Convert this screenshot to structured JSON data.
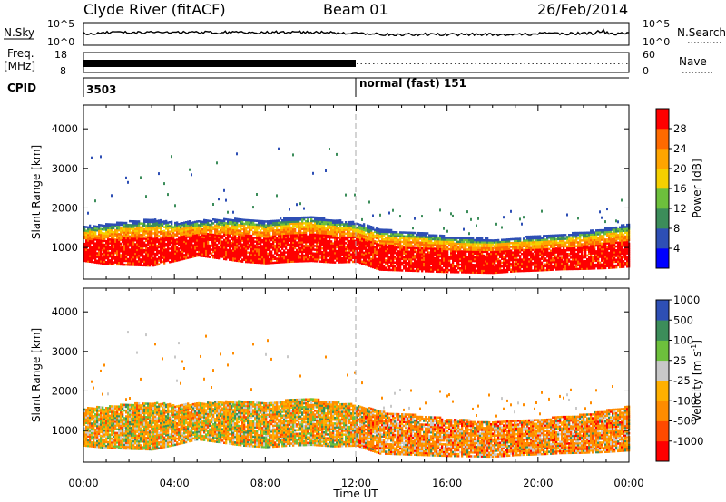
{
  "header": {
    "station": "Clyde River (fitACF)",
    "beam": "Beam 01",
    "date": "26/Feb/2014"
  },
  "noise_panel": {
    "left_label": "N.Sky",
    "right_label": "N.Search",
    "left_ticks": [
      "10^5",
      "10^0"
    ],
    "right_ticks": [
      "10^5",
      "10^0"
    ]
  },
  "freq_panel": {
    "left_label_line1": "Freq.",
    "left_label_line2": "[MHz]",
    "right_label": "Nave",
    "left_ticks": [
      "18",
      "8"
    ],
    "right_ticks": [
      "60",
      "0"
    ]
  },
  "cpid_panel": {
    "label": "CPID",
    "segments": [
      {
        "text": "3503",
        "start_hour": 0
      },
      {
        "text": "normal (fast) 151",
        "start_hour": 12
      }
    ]
  },
  "time_axis": {
    "label": "Time UT",
    "ticks": [
      "00:00",
      "04:00",
      "08:00",
      "12:00",
      "16:00",
      "20:00",
      "00:00"
    ],
    "tick_hours": [
      0,
      4,
      8,
      12,
      16,
      20,
      24
    ]
  },
  "colors": {
    "power_scale": [
      "#0000ff",
      "#2e4fb5",
      "#3c8d5a",
      "#6dc03c",
      "#f5d000",
      "#ffa500",
      "#ff6a00",
      "#ff0000"
    ],
    "velocity_scale": [
      "#ff0000",
      "#ff4a00",
      "#ff8c00",
      "#ffb000",
      "#c8c8c8",
      "#6dc03c",
      "#3c8d5a",
      "#2e4fb5"
    ]
  },
  "chart_data": [
    {
      "type": "heatmap",
      "panel": "power",
      "ylabel": "Slant Range [km]",
      "xlim_hours": [
        0,
        24
      ],
      "ylim_km": [
        200,
        4600
      ],
      "ytick_values": [
        1000,
        2000,
        3000,
        4000
      ],
      "ytick_labels": [
        "1000",
        "2000",
        "3000",
        "4000"
      ],
      "colorbar_label": "Power [dB]",
      "colorbar_ticks": [
        "4",
        "8",
        "12",
        "16",
        "20",
        "24",
        "28"
      ],
      "colorbar_range": [
        0,
        32
      ],
      "upper_edge_km": [
        [
          0,
          1520
        ],
        [
          1,
          1580
        ],
        [
          2,
          1650
        ],
        [
          3,
          1700
        ],
        [
          4,
          1620
        ],
        [
          5,
          1660
        ],
        [
          6,
          1700
        ],
        [
          7,
          1720
        ],
        [
          8,
          1650
        ],
        [
          9,
          1750
        ],
        [
          10,
          1780
        ],
        [
          11,
          1680
        ],
        [
          12,
          1620
        ],
        [
          13,
          1450
        ],
        [
          14,
          1390
        ],
        [
          15,
          1350
        ],
        [
          16,
          1270
        ],
        [
          17,
          1230
        ],
        [
          18,
          1200
        ],
        [
          19,
          1240
        ],
        [
          20,
          1270
        ],
        [
          21,
          1320
        ],
        [
          22,
          1380
        ],
        [
          23,
          1480
        ],
        [
          24,
          1580
        ]
      ],
      "lower_edge_km": [
        [
          0,
          640
        ],
        [
          1,
          560
        ],
        [
          2,
          540
        ],
        [
          3,
          520
        ],
        [
          4,
          640
        ],
        [
          5,
          780
        ],
        [
          6,
          700
        ],
        [
          7,
          620
        ],
        [
          8,
          580
        ],
        [
          9,
          620
        ],
        [
          10,
          640
        ],
        [
          11,
          600
        ],
        [
          12,
          620
        ],
        [
          13,
          420
        ],
        [
          14,
          400
        ],
        [
          15,
          380
        ],
        [
          16,
          360
        ],
        [
          17,
          350
        ],
        [
          18,
          340
        ],
        [
          19,
          380
        ],
        [
          20,
          400
        ],
        [
          21,
          430
        ],
        [
          22,
          440
        ],
        [
          23,
          460
        ],
        [
          24,
          500
        ]
      ]
    },
    {
      "type": "heatmap",
      "panel": "velocity",
      "ylabel": "Slant Range [km]",
      "xlim_hours": [
        0,
        24
      ],
      "ylim_km": [
        200,
        4600
      ],
      "ytick_values": [
        1000,
        2000,
        3000,
        4000
      ],
      "ytick_labels": [
        "1000",
        "2000",
        "3000",
        "4000"
      ],
      "colorbar_label": "Velocity [m s^-1]",
      "colorbar_ticks": [
        "-1000",
        "-500",
        "-100",
        "-25",
        "25",
        "100",
        "500",
        "1000"
      ],
      "upper_edge_km": [
        [
          0,
          1550
        ],
        [
          1,
          1600
        ],
        [
          2,
          1660
        ],
        [
          3,
          1700
        ],
        [
          4,
          1640
        ],
        [
          5,
          1680
        ],
        [
          6,
          1720
        ],
        [
          7,
          1740
        ],
        [
          8,
          1670
        ],
        [
          9,
          1760
        ],
        [
          10,
          1790
        ],
        [
          11,
          1700
        ],
        [
          12,
          1640
        ],
        [
          13,
          1470
        ],
        [
          14,
          1400
        ],
        [
          15,
          1360
        ],
        [
          16,
          1280
        ],
        [
          17,
          1240
        ],
        [
          18,
          1210
        ],
        [
          19,
          1250
        ],
        [
          20,
          1280
        ],
        [
          21,
          1330
        ],
        [
          22,
          1390
        ],
        [
          23,
          1500
        ],
        [
          24,
          1600
        ]
      ],
      "lower_edge_km": [
        [
          0,
          600
        ],
        [
          1,
          540
        ],
        [
          2,
          520
        ],
        [
          3,
          500
        ],
        [
          4,
          620
        ],
        [
          5,
          760
        ],
        [
          6,
          680
        ],
        [
          7,
          600
        ],
        [
          8,
          560
        ],
        [
          9,
          600
        ],
        [
          10,
          620
        ],
        [
          11,
          580
        ],
        [
          12,
          600
        ],
        [
          13,
          400
        ],
        [
          14,
          380
        ],
        [
          15,
          360
        ],
        [
          16,
          340
        ],
        [
          17,
          330
        ],
        [
          18,
          320
        ],
        [
          19,
          360
        ],
        [
          20,
          380
        ],
        [
          21,
          410
        ],
        [
          22,
          420
        ],
        [
          23,
          440
        ],
        [
          24,
          480
        ]
      ]
    }
  ]
}
